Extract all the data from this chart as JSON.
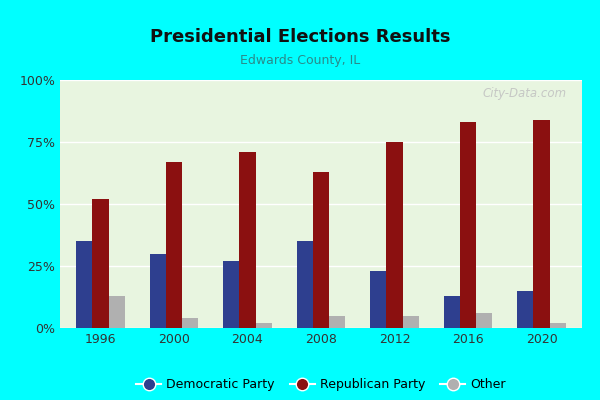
{
  "title": "Presidential Elections Results",
  "subtitle": "Edwards County, IL",
  "years": [
    1996,
    2000,
    2004,
    2008,
    2012,
    2016,
    2020
  ],
  "democratic": [
    35,
    30,
    27,
    35,
    23,
    13,
    15
  ],
  "republican": [
    52,
    67,
    71,
    63,
    75,
    83,
    84
  ],
  "other": [
    13,
    4,
    2,
    5,
    5,
    6,
    2
  ],
  "dem_color": "#2e3f8f",
  "rep_color": "#8b1010",
  "other_color": "#b0b0b0",
  "bg_color_top": "#e8f5e0",
  "bg_color_bottom": "#f8fff8",
  "outer_bg": "#00ffff",
  "subtitle_color": "#2a8a8a",
  "title_color": "#111111",
  "ylim": [
    0,
    100
  ],
  "yticks": [
    0,
    25,
    50,
    75,
    100
  ],
  "ytick_labels": [
    "0%",
    "25%",
    "50%",
    "75%",
    "100%"
  ],
  "watermark": "City-Data.com",
  "bar_width": 0.22
}
